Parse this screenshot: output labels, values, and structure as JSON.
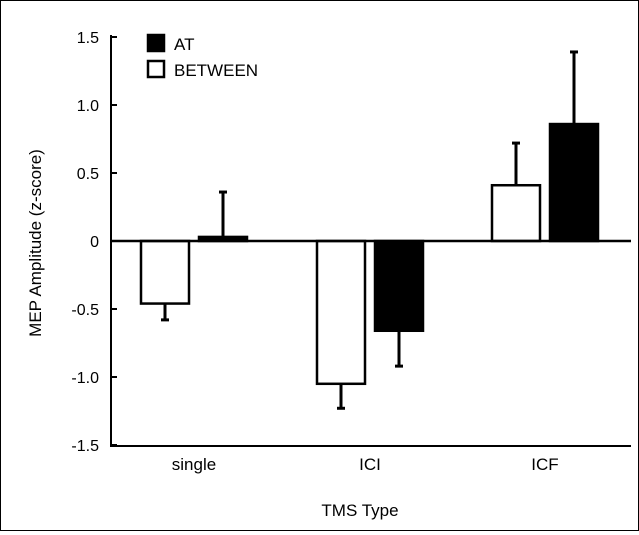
{
  "chart_data": {
    "type": "bar",
    "categories": [
      "single",
      "ICI",
      "ICF"
    ],
    "series": [
      {
        "name": "BETWEEN",
        "values": [
          -0.46,
          -1.05,
          0.41
        ],
        "errors": [
          0.12,
          0.18,
          0.31
        ],
        "fill": "#ffffff"
      },
      {
        "name": "AT",
        "values": [
          0.03,
          -0.66,
          0.86
        ],
        "errors": [
          0.33,
          0.26,
          0.53
        ],
        "fill": "#000000"
      }
    ],
    "legend_order": [
      "AT",
      "BETWEEN"
    ],
    "xlabel": "TMS Type",
    "ylabel": "MEP Amplitude (z-score)",
    "ylim": [
      -1.5,
      1.5
    ],
    "yticks": [
      "1.5",
      "1.0",
      "0.5",
      "0",
      "-0.5",
      "-1.0",
      "-1.5"
    ],
    "ytick_values": [
      1.5,
      1.0,
      0.5,
      0,
      -0.5,
      -1.0,
      -1.5
    ],
    "legend_position": "top-left",
    "grid": false,
    "error_bars": "one-sided"
  }
}
